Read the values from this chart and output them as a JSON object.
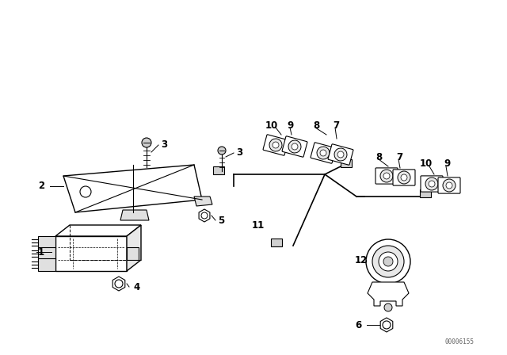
{
  "bg_color": "#ffffff",
  "line_color": "#000000",
  "fig_width": 6.4,
  "fig_height": 4.48,
  "dpi": 100,
  "watermark": "00006155"
}
